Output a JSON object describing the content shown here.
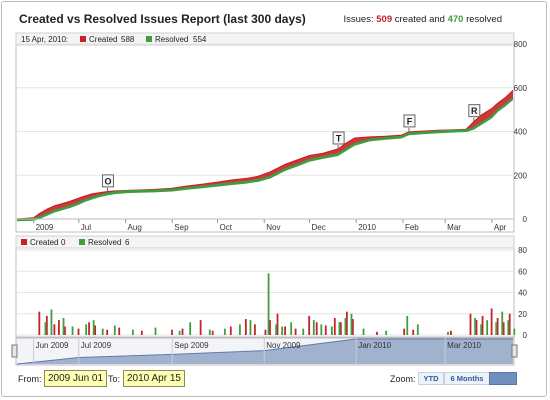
{
  "header": {
    "title": "Created vs Resolved Issues Report (last 300 days)",
    "summary_prefix": "Issues:",
    "created_count": "509",
    "created_word": "created and",
    "resolved_count": "470",
    "resolved_word": "resolved"
  },
  "top_legend": {
    "date": "15 Apr, 2010:",
    "created_label": "Created",
    "created_value": "588",
    "resolved_label": "Resolved",
    "resolved_value": "554"
  },
  "bottom_legend": {
    "created_label": "Created",
    "created_value": "0",
    "resolved_label": "Resolved",
    "resolved_value": "6"
  },
  "colors": {
    "created": "#c72226",
    "resolved": "#3f9e3f",
    "navigator": "#5f7bab"
  },
  "chart_data": [
    {
      "type": "area",
      "name": "cumulative",
      "x_tick_labels": [
        "2009",
        "Jul",
        "Aug",
        "Sep",
        "Oct",
        "Nov",
        "Dec",
        "2010",
        "Feb",
        "Mar",
        "Apr"
      ],
      "y_ticks": [
        0,
        200,
        400,
        600,
        800
      ],
      "ylim": [
        0,
        800
      ],
      "series": [
        {
          "name": "Created",
          "x": [
            "2009-05-21",
            "2009-06-01",
            "2009-06-05",
            "2009-06-10",
            "2009-06-15",
            "2009-06-20",
            "2009-06-25",
            "2009-07-01",
            "2009-07-05",
            "2009-07-10",
            "2009-07-15",
            "2009-07-20",
            "2009-07-25",
            "2009-08-01",
            "2009-08-10",
            "2009-08-20",
            "2009-09-01",
            "2009-09-10",
            "2009-09-20",
            "2009-10-01",
            "2009-10-10",
            "2009-10-20",
            "2009-10-28",
            "2009-11-05",
            "2009-11-15",
            "2009-11-25",
            "2009-12-01",
            "2009-12-10",
            "2009-12-20",
            "2009-12-25",
            "2009-12-31",
            "2010-01-10",
            "2010-01-20",
            "2010-01-31",
            "2010-02-05",
            "2010-02-15",
            "2010-02-25",
            "2010-03-05",
            "2010-03-15",
            "2010-03-20",
            "2010-03-25",
            "2010-04-01",
            "2010-04-05",
            "2010-04-10",
            "2010-04-15"
          ],
          "values": [
            0,
            5,
            25,
            45,
            60,
            70,
            80,
            95,
            105,
            115,
            120,
            125,
            128,
            130,
            132,
            135,
            140,
            150,
            158,
            168,
            178,
            185,
            195,
            215,
            250,
            275,
            290,
            300,
            320,
            345,
            370,
            375,
            378,
            383,
            398,
            402,
            405,
            407,
            410,
            445,
            475,
            505,
            530,
            555,
            588
          ]
        },
        {
          "name": "Resolved",
          "x": [
            "2009-05-21",
            "2009-06-01",
            "2009-06-05",
            "2009-06-10",
            "2009-06-15",
            "2009-06-20",
            "2009-06-25",
            "2009-07-01",
            "2009-07-05",
            "2009-07-10",
            "2009-07-15",
            "2009-07-20",
            "2009-07-25",
            "2009-08-01",
            "2009-08-10",
            "2009-08-20",
            "2009-09-01",
            "2009-09-10",
            "2009-09-20",
            "2009-10-01",
            "2009-10-10",
            "2009-10-20",
            "2009-10-28",
            "2009-11-05",
            "2009-11-15",
            "2009-11-25",
            "2009-12-01",
            "2009-12-10",
            "2009-12-20",
            "2009-12-25",
            "2009-12-31",
            "2010-01-10",
            "2010-01-20",
            "2010-01-31",
            "2010-02-05",
            "2010-02-15",
            "2010-02-25",
            "2010-03-05",
            "2010-03-15",
            "2010-03-20",
            "2010-03-25",
            "2010-04-01",
            "2010-04-05",
            "2010-04-10",
            "2010-04-15"
          ],
          "values": [
            0,
            2,
            10,
            25,
            40,
            50,
            60,
            75,
            88,
            100,
            110,
            118,
            124,
            128,
            130,
            132,
            136,
            143,
            150,
            158,
            165,
            172,
            180,
            195,
            230,
            255,
            272,
            285,
            298,
            320,
            345,
            365,
            372,
            378,
            393,
            398,
            402,
            405,
            408,
            418,
            440,
            470,
            500,
            525,
            554
          ]
        }
      ],
      "flags": [
        {
          "letter": "O",
          "x": "2009-07-20",
          "y": 124
        },
        {
          "letter": "T",
          "x": "2009-12-20",
          "y": 320
        },
        {
          "letter": "F",
          "x": "2010-02-05",
          "y": 398
        },
        {
          "letter": "R",
          "x": "2010-03-20",
          "y": 445
        }
      ]
    },
    {
      "type": "bar",
      "name": "daily",
      "y_ticks": [
        0,
        20,
        40,
        60,
        80
      ],
      "ylim": [
        0,
        80
      ],
      "series": [
        {
          "name": "Created",
          "x": [
            "2009-06-05",
            "2009-06-10",
            "2009-06-15",
            "2009-06-18",
            "2009-06-22",
            "2009-07-01",
            "2009-07-08",
            "2009-07-12",
            "2009-07-20",
            "2009-07-28",
            "2009-08-12",
            "2009-09-01",
            "2009-09-08",
            "2009-09-20",
            "2009-09-28",
            "2009-10-10",
            "2009-10-20",
            "2009-10-26",
            "2009-11-02",
            "2009-11-05",
            "2009-11-10",
            "2009-11-15",
            "2009-11-22",
            "2009-12-01",
            "2009-12-06",
            "2009-12-12",
            "2009-12-18",
            "2009-12-22",
            "2009-12-26",
            "2009-12-30",
            "2010-01-15",
            "2010-02-02",
            "2010-02-08",
            "2010-03-05",
            "2010-03-18",
            "2010-03-22",
            "2010-03-26",
            "2010-04-01",
            "2010-04-05",
            "2010-04-09",
            "2010-04-13"
          ],
          "values": [
            22,
            18,
            10,
            14,
            8,
            6,
            12,
            9,
            5,
            7,
            4,
            5,
            6,
            14,
            4,
            8,
            15,
            10,
            5,
            14,
            20,
            8,
            6,
            18,
            12,
            9,
            16,
            12,
            22,
            15,
            3,
            6,
            5,
            4,
            20,
            14,
            18,
            25,
            16,
            12,
            20
          ]
        },
        {
          "name": "Resolved",
          "x": [
            "2009-06-08",
            "2009-06-12",
            "2009-06-20",
            "2009-06-26",
            "2009-07-05",
            "2009-07-10",
            "2009-07-16",
            "2009-07-24",
            "2009-08-05",
            "2009-08-20",
            "2009-09-05",
            "2009-09-12",
            "2009-09-25",
            "2009-10-05",
            "2009-10-15",
            "2009-10-22",
            "2009-11-03",
            "2009-11-08",
            "2009-11-12",
            "2009-11-18",
            "2009-11-26",
            "2009-12-03",
            "2009-12-08",
            "2009-12-15",
            "2009-12-20",
            "2009-12-24",
            "2009-12-28",
            "2010-01-05",
            "2010-01-20",
            "2010-02-03",
            "2010-02-10",
            "2010-03-02",
            "2010-03-20",
            "2010-03-24",
            "2010-03-28",
            "2010-04-03",
            "2010-04-07",
            "2010-04-11",
            "2010-04-15"
          ],
          "values": [
            12,
            24,
            16,
            8,
            10,
            14,
            6,
            9,
            5,
            7,
            4,
            12,
            5,
            6,
            10,
            14,
            58,
            10,
            8,
            12,
            6,
            14,
            10,
            8,
            12,
            16,
            20,
            6,
            4,
            18,
            10,
            3,
            16,
            10,
            14,
            12,
            22,
            14,
            6
          ]
        }
      ]
    },
    {
      "type": "area",
      "name": "navigator",
      "x_tick_labels": [
        "Jun 2009",
        "Jul 2009",
        "Sep 2009",
        "Nov 2009",
        "Jan 2010",
        "Mar 2010"
      ],
      "x": [
        "2009-05-21",
        "2009-07-01",
        "2009-09-01",
        "2009-11-01",
        "2010-01-01",
        "2010-03-01",
        "2010-04-15"
      ],
      "values": [
        0,
        95,
        140,
        195,
        370,
        405,
        588
      ],
      "ylim": [
        0,
        800
      ]
    }
  ],
  "range_selector": {
    "from_label": "From:",
    "from_value": "2009 Jun 01",
    "to_label": "To:",
    "to_value": "2010 Apr 15",
    "zoom_label": "Zoom:",
    "buttons": [
      "YTD",
      "6 Months",
      "Max"
    ],
    "active": "Max"
  }
}
